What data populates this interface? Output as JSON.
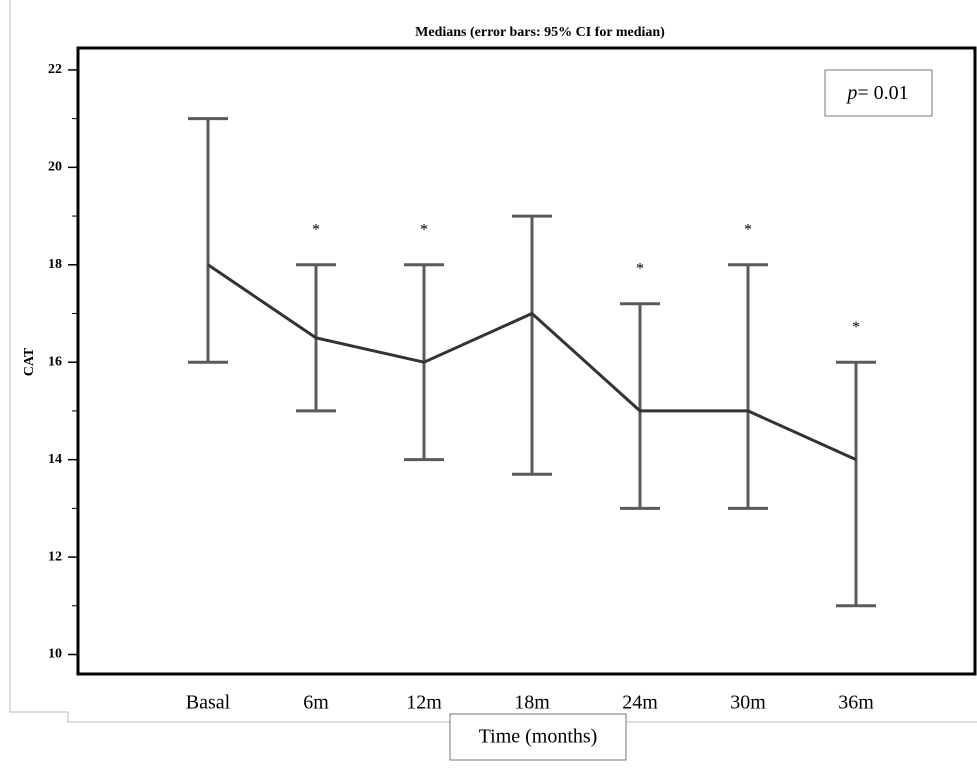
{
  "chart_data": {
    "type": "line",
    "title": "Medians  (error bars: 95% CI for median)",
    "x_label": "Time (months)",
    "y_label": "CAT",
    "annotation_parts": [
      "p",
      "= 0.01"
    ],
    "categories": [
      "Basal",
      "6m",
      "12m",
      "18m",
      "24m",
      "30m",
      "36m"
    ],
    "series": [
      {
        "color": "#333333",
        "error_color": "#5a5a5a",
        "values": [
          18,
          16.5,
          16,
          17,
          15,
          15,
          14
        ],
        "lower": [
          16,
          15,
          14,
          13.7,
          13,
          13,
          11
        ],
        "upper": [
          21,
          18,
          18,
          19,
          17.2,
          18,
          16
        ],
        "significance": [
          null,
          "*",
          "*",
          null,
          "*",
          "*",
          "*"
        ]
      }
    ],
    "ylim": [
      9.6,
      22.45
    ],
    "yticks": [
      10,
      12,
      14,
      16,
      18,
      20,
      22
    ],
    "minor_yticks": [
      11,
      13,
      15,
      17,
      19,
      21
    ]
  }
}
